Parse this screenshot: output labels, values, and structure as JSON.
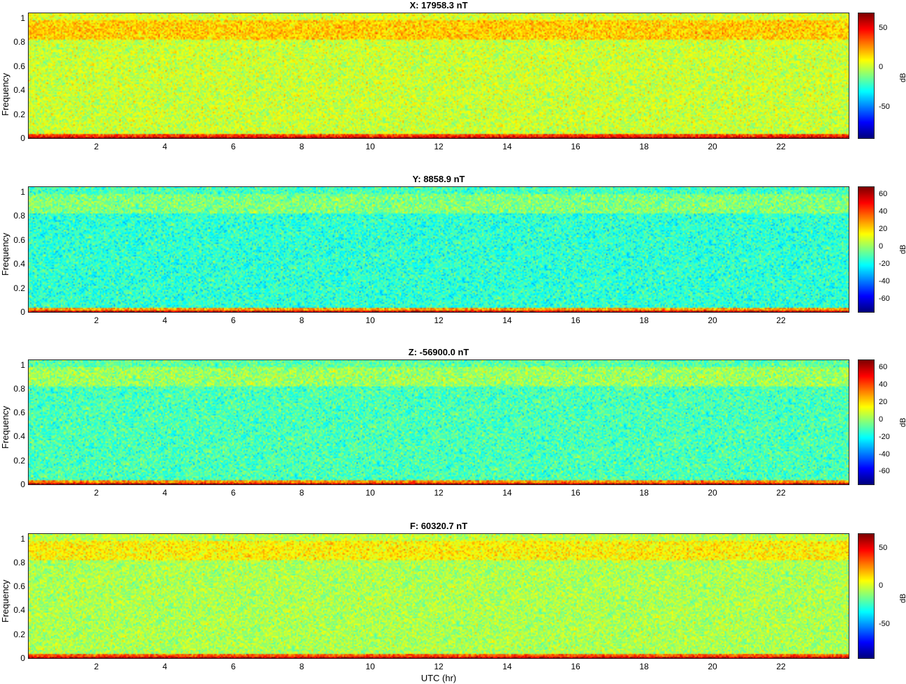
{
  "chart_data": [
    {
      "type": "heatmap",
      "title": "X: 17958.3 nT",
      "ylabel": "Frequency",
      "xlim": [
        0,
        24
      ],
      "ylim": [
        0,
        1.05
      ],
      "xticks": [
        2,
        4,
        6,
        8,
        10,
        12,
        14,
        16,
        18,
        20,
        22
      ],
      "yticks": [
        0,
        0.2,
        0.4,
        0.6,
        0.8,
        1
      ],
      "colorbar": {
        "label": "dB",
        "range": [
          -90,
          70
        ],
        "ticks": [
          -50,
          0,
          50
        ]
      },
      "base_level_db": 2,
      "band_level_db": 18,
      "low_freq_level_db": 65
    },
    {
      "type": "heatmap",
      "title": "Y: 8858.9 nT",
      "ylabel": "Frequency",
      "xlim": [
        0,
        24
      ],
      "ylim": [
        0,
        1.05
      ],
      "xticks": [
        2,
        4,
        6,
        8,
        10,
        12,
        14,
        16,
        18,
        20,
        22
      ],
      "yticks": [
        0,
        0.2,
        0.4,
        0.6,
        0.8,
        1
      ],
      "colorbar": {
        "label": "dB",
        "range": [
          -75,
          70
        ],
        "ticks": [
          -60,
          -40,
          -20,
          0,
          20,
          40,
          60
        ]
      },
      "base_level_db": -14,
      "band_level_db": -2,
      "low_freq_level_db": 62
    },
    {
      "type": "heatmap",
      "title": "Z: -56900.0 nT",
      "ylabel": "Frequency",
      "xlim": [
        0,
        24
      ],
      "ylim": [
        0,
        1.05
      ],
      "xticks": [
        2,
        4,
        6,
        8,
        10,
        12,
        14,
        16,
        18,
        20,
        22
      ],
      "yticks": [
        0,
        0.2,
        0.4,
        0.6,
        0.8,
        1
      ],
      "colorbar": {
        "label": "dB",
        "range": [
          -75,
          70
        ],
        "ticks": [
          -60,
          -40,
          -20,
          0,
          20,
          40,
          60
        ]
      },
      "base_level_db": -10,
      "band_level_db": 2,
      "low_freq_level_db": 62
    },
    {
      "type": "heatmap",
      "title": "F: 60320.7 nT",
      "ylabel": "Frequency",
      "xlim": [
        0,
        24
      ],
      "ylim": [
        0,
        1.05
      ],
      "xticks": [
        2,
        4,
        6,
        8,
        10,
        12,
        14,
        16,
        18,
        20,
        22
      ],
      "yticks": [
        0,
        0.2,
        0.4,
        0.6,
        0.8,
        1
      ],
      "colorbar": {
        "label": "dB",
        "range": [
          -95,
          70
        ],
        "ticks": [
          -50,
          0,
          50
        ]
      },
      "base_level_db": -5,
      "band_level_db": 10,
      "low_freq_level_db": 62
    }
  ],
  "xlabel": "UTC (hr)"
}
